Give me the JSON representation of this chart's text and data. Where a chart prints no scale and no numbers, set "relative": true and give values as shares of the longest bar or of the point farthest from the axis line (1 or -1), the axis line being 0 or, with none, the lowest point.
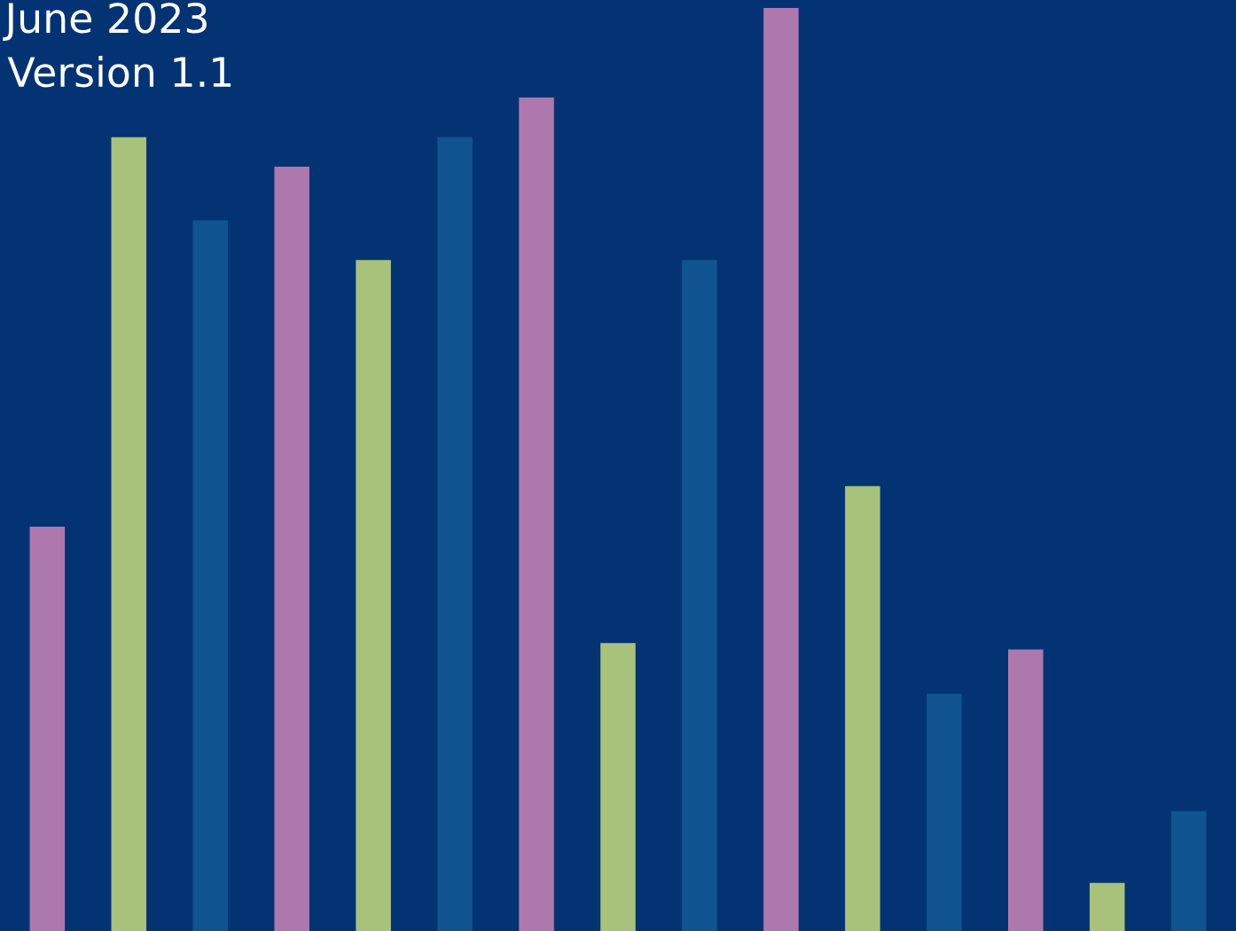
{
  "chart_data": {
    "type": "bar",
    "title": "June 2023",
    "subtitle": "Version 1.1",
    "relative": true,
    "categories": [
      null,
      null,
      null,
      null,
      null,
      null,
      null,
      null,
      null,
      null,
      null,
      null,
      null,
      null,
      null
    ],
    "values": [
      0.438,
      0.86,
      0.77,
      0.828,
      0.727,
      0.86,
      0.903,
      0.312,
      0.727,
      1,
      0.482,
      0.257,
      0.305,
      0.052,
      0.13
    ],
    "colors": [
      "#ad78ae",
      "#a8c17b",
      "#0f5490",
      "#ad78ae",
      "#a8c17b",
      "#0f5490",
      "#ad78ae",
      "#a8c17b",
      "#0f5490",
      "#ad78ae",
      "#a8c17b",
      "#0f5490",
      "#ad78ae",
      "#a8c17b",
      "#0f5490"
    ],
    "grid": false,
    "legend": false
  }
}
